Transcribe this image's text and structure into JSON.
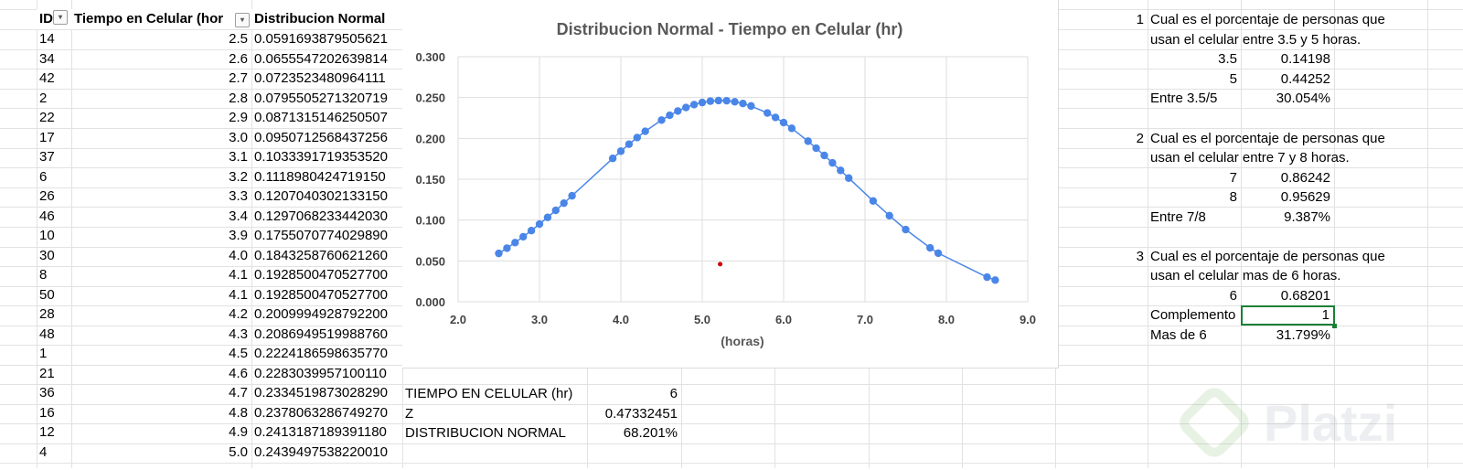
{
  "table": {
    "headers": {
      "id": "ID",
      "tiempo": "Tiempo en Celular (hor",
      "dist": "Distribucion Normal"
    },
    "rows": [
      {
        "id": "14",
        "t": "2.5",
        "d": "0.0591693879505621"
      },
      {
        "id": "34",
        "t": "2.6",
        "d": "0.0655547202639814"
      },
      {
        "id": "42",
        "t": "2.7",
        "d": "0.0723523480964111"
      },
      {
        "id": "2",
        "t": "2.8",
        "d": "0.0795505271320719"
      },
      {
        "id": "22",
        "t": "2.9",
        "d": "0.0871315146250507"
      },
      {
        "id": "17",
        "t": "3.0",
        "d": "0.0950712568437256"
      },
      {
        "id": "37",
        "t": "3.1",
        "d": "0.1033391719353520"
      },
      {
        "id": "6",
        "t": "3.2",
        "d": "0.1118980424719150"
      },
      {
        "id": "26",
        "t": "3.3",
        "d": "0.1207040302133150"
      },
      {
        "id": "46",
        "t": "3.4",
        "d": "0.1297068233442030"
      },
      {
        "id": "10",
        "t": "3.9",
        "d": "0.1755070774029890"
      },
      {
        "id": "30",
        "t": "4.0",
        "d": "0.1843258760621260"
      },
      {
        "id": "8",
        "t": "4.1",
        "d": "0.1928500470527700"
      },
      {
        "id": "50",
        "t": "4.1",
        "d": "0.1928500470527700"
      },
      {
        "id": "28",
        "t": "4.2",
        "d": "0.2009994928792200"
      },
      {
        "id": "48",
        "t": "4.3",
        "d": "0.2086949519988760"
      },
      {
        "id": "1",
        "t": "4.5",
        "d": "0.2224186598635770"
      },
      {
        "id": "21",
        "t": "4.6",
        "d": "0.2283039957100110"
      },
      {
        "id": "36",
        "t": "4.7",
        "d": "0.2334519873028290"
      },
      {
        "id": "16",
        "t": "4.8",
        "d": "0.2378063286749270"
      },
      {
        "id": "12",
        "t": "4.9",
        "d": "0.2413187189391180"
      },
      {
        "id": "4",
        "t": "5.0",
        "d": "0.2439497538220010"
      }
    ]
  },
  "calc": {
    "tiempo_label": "TIEMPO EN CELULAR (hr)",
    "tiempo_value": "6",
    "z_label": "Z",
    "z_value": "0.47332451",
    "dist_label": "DISTRIBUCION NORMAL",
    "dist_value": "68.201%"
  },
  "questions": {
    "q1": {
      "num": "1",
      "line1": "Cual es el porcentaje de personas que",
      "line2": "usan el celular entre 3.5 y 5 horas.",
      "a_key": "3.5",
      "a_val": "0.14198",
      "b_key": "5",
      "b_val": "0.44252",
      "res_label": "Entre 3.5/5",
      "res_val": "30.054%"
    },
    "q2": {
      "num": "2",
      "line1": "Cual es el porcentaje de personas que",
      "line2": "usan el celular entre 7 y 8 horas.",
      "a_key": "7",
      "a_val": "0.86242",
      "b_key": "8",
      "b_val": "0.95629",
      "res_label": "Entre 7/8",
      "res_val": "9.387%"
    },
    "q3": {
      "num": "3",
      "line1": "Cual es el porcentaje de personas que",
      "line2": "usan el celular mas de 6 horas.",
      "a_key": "6",
      "a_val": "0.68201",
      "comp_label": "Complemento",
      "comp_val": "1",
      "res_label": "Mas de 6",
      "res_val": "31.799%"
    }
  },
  "watermark": {
    "text": "Platzi"
  },
  "colors": {
    "series": "#4a86e8",
    "outlier": "#cc0000",
    "selection": "#1a7f37"
  },
  "chart_data": {
    "type": "scatter",
    "title": "Distribucion Normal - Tiempo en Celular (hr)",
    "xlabel": "(horas)",
    "ylabel": "",
    "xlim": [
      2.0,
      9.0
    ],
    "ylim": [
      0.0,
      0.3
    ],
    "xticks": [
      "2.0",
      "3.0",
      "4.0",
      "5.0",
      "6.0",
      "7.0",
      "8.0",
      "9.0"
    ],
    "yticks": [
      "0.000",
      "0.050",
      "0.100",
      "0.150",
      "0.200",
      "0.250",
      "0.300"
    ],
    "grid": true,
    "series": [
      {
        "x": [
          2.5,
          2.6,
          2.7,
          2.8,
          2.9,
          3.0,
          3.1,
          3.2,
          3.3,
          3.4,
          3.9,
          4.0,
          4.1,
          4.2,
          4.3,
          4.5,
          4.6,
          4.7,
          4.8,
          4.9,
          5.0,
          5.1,
          5.2,
          5.3,
          5.4,
          5.5,
          5.6,
          5.8,
          5.9,
          6.0,
          6.1,
          6.3,
          6.4,
          6.5,
          6.6,
          6.7,
          6.8,
          7.1,
          7.3,
          7.5,
          7.8,
          7.9,
          8.5,
          8.6
        ],
        "y": [
          0.0592,
          0.0656,
          0.0724,
          0.0796,
          0.0871,
          0.0951,
          0.1033,
          0.1119,
          0.1207,
          0.1297,
          0.1755,
          0.1843,
          0.1929,
          0.201,
          0.2087,
          0.2224,
          0.2283,
          0.2335,
          0.2378,
          0.2413,
          0.2439,
          0.2456,
          0.2463,
          0.2461,
          0.2448,
          0.2427,
          0.2397,
          0.2311,
          0.2256,
          0.2193,
          0.2123,
          0.1966,
          0.188,
          0.1791,
          0.17,
          0.1608,
          0.1514,
          0.1234,
          0.1054,
          0.0884,
          0.066,
          0.0594,
          0.0301,
          0.0265
        ]
      },
      {
        "x": [
          5.22
        ],
        "y": [
          0.046
        ]
      }
    ]
  }
}
